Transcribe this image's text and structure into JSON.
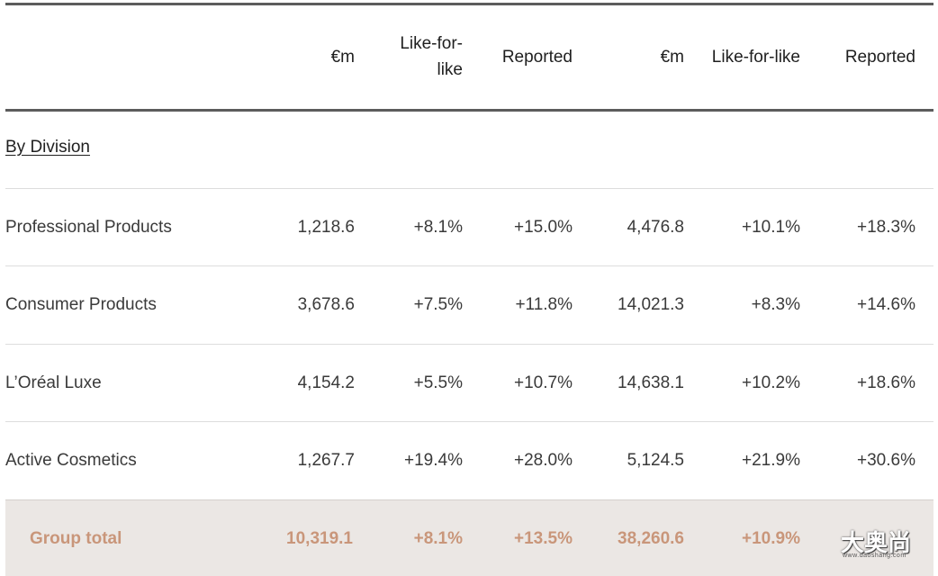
{
  "header": {
    "col1": "€m",
    "col2_line1": "Like-for-",
    "col2_line2": "like",
    "col3": "Reported",
    "col4": "€m",
    "col5": "Like-for-like",
    "col6": "Reported"
  },
  "section": {
    "title": "By Division"
  },
  "rows": [
    {
      "label": "Professional Products",
      "v1": "1,218.6",
      "v2": "+8.1%",
      "v3": "+15.0%",
      "v4": "4,476.8",
      "v5": "+10.1%",
      "v6": "+18.3%"
    },
    {
      "label": "Consumer Products",
      "v1": "3,678.6",
      "v2": "+7.5%",
      "v3": "+11.8%",
      "v4": "14,021.3",
      "v5": "+8.3%",
      "v6": "+14.6%"
    },
    {
      "label": "L’Oréal Luxe",
      "v1": "4,154.2",
      "v2": "+5.5%",
      "v3": "+10.7%",
      "v4": "14,638.1",
      "v5": "+10.2%",
      "v6": "+18.6%"
    },
    {
      "label": "Active Cosmetics",
      "v1": "1,267.7",
      "v2": "+19.4%",
      "v3": "+28.0%",
      "v4": "5,124.5",
      "v5": "+21.9%",
      "v6": "+30.6%"
    }
  ],
  "total": {
    "label": "Group total",
    "v1": "10,319.1",
    "v2": "+8.1%",
    "v3": "+13.5%",
    "v4": "38,260.6",
    "v5": "+10.9%"
  },
  "watermark": {
    "main": "大奥尚",
    "sub": "www.daoshang.com"
  },
  "colors": {
    "total_text": "#c9967a",
    "total_bg": "#ebe7e4",
    "rule": "#5c5c5c"
  }
}
